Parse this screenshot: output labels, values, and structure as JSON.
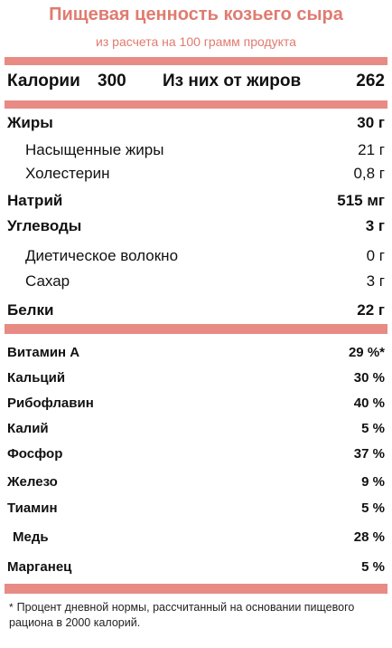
{
  "header": {
    "title": "Пищевая ценность козьего сыра",
    "subtitle": "из расчета на 100 грамм продукта"
  },
  "calories": {
    "label": "Калории",
    "value": "300",
    "fat_label": "Из них от жиров",
    "fat_value": "262"
  },
  "nutrients": [
    {
      "label": "Жиры",
      "value": "30 г"
    },
    {
      "label": "Насыщенные жиры",
      "value": "21 г"
    },
    {
      "label": "Холестерин",
      "value": "0,8 г"
    },
    {
      "label": "Натрий",
      "value": "515 мг"
    },
    {
      "label": "Углеводы",
      "value": "3 г"
    },
    {
      "label": "Диетическое волокно",
      "value": "0 г"
    },
    {
      "label": "Сахар",
      "value": "3 г"
    },
    {
      "label": "Белки",
      "value": "22 г"
    }
  ],
  "vitamins": [
    {
      "label": "Витамин А",
      "value": "29 %*"
    },
    {
      "label": "Кальций",
      "value": "30 %"
    },
    {
      "label": "Рибофлавин",
      "value": "40 %"
    },
    {
      "label": "Калий",
      "value": "5 %"
    },
    {
      "label": "Фосфор",
      "value": "37 %"
    },
    {
      "label": "Железо",
      "value": "9 %"
    },
    {
      "label": "Тиамин",
      "value": "5 %"
    },
    {
      "label": "Медь",
      "value": "28 %"
    },
    {
      "label": "Марганец",
      "value": "5 %"
    }
  ],
  "footnote": {
    "mark": "*",
    "text": "Процент дневной нормы, рассчитанный на основании пищевого рациона в 2000 калорий."
  },
  "colors": {
    "accent": "#e07b70",
    "bar": "#e78b84"
  }
}
